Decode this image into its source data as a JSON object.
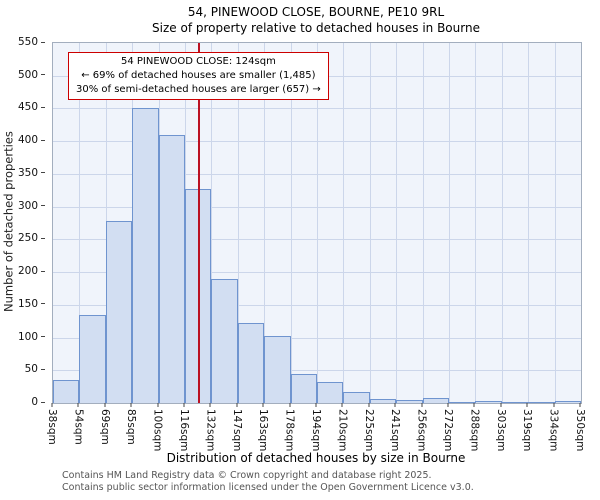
{
  "title": "54, PINEWOOD CLOSE, BOURNE, PE10 9RL",
  "subtitle": "Size of property relative to detached houses in Bourne",
  "annotation": {
    "line1": "54 PINEWOOD CLOSE: 124sqm",
    "line2": "← 69% of detached houses are smaller (1,485)",
    "line3": "30% of semi-detached houses are larger (657) →"
  },
  "footer": {
    "line1": "Contains HM Land Registry data © Crown copyright and database right 2025.",
    "line2": "Contains public sector information licensed under the Open Government Licence v3.0."
  },
  "chart_data": {
    "type": "bar",
    "title": "54, PINEWOOD CLOSE, BOURNE, PE10 9RL",
    "subtitle": "Size of property relative to detached houses in Bourne",
    "xlabel": "Distribution of detached houses by size in Bourne",
    "ylabel": "Number of detached properties",
    "categories": [
      "38sqm",
      "54sqm",
      "69sqm",
      "85sqm",
      "100sqm",
      "116sqm",
      "132sqm",
      "147sqm",
      "163sqm",
      "178sqm",
      "194sqm",
      "210sqm",
      "225sqm",
      "241sqm",
      "256sqm",
      "272sqm",
      "288sqm",
      "303sqm",
      "319sqm",
      "334sqm",
      "350sqm"
    ],
    "values": [
      35,
      135,
      278,
      450,
      410,
      327,
      190,
      123,
      102,
      44,
      32,
      17,
      6,
      4,
      7,
      2,
      3,
      1,
      1,
      3
    ],
    "xlim": [
      38,
      350
    ],
    "ylim": [
      0,
      550
    ],
    "y_ticks": [
      0,
      50,
      100,
      150,
      200,
      250,
      300,
      350,
      400,
      450,
      500,
      550
    ],
    "grid": true,
    "legend": false,
    "marker": {
      "value": 124,
      "label": "54 PINEWOOD CLOSE: 124sqm"
    },
    "colors": {
      "bar_fill": "#d2def2",
      "bar_border": "#6f94cf",
      "grid": "#ccd6ea",
      "plot_bg": "#f0f4fb",
      "marker_line": "#bb1122",
      "annotation_border": "#cc0000"
    }
  }
}
